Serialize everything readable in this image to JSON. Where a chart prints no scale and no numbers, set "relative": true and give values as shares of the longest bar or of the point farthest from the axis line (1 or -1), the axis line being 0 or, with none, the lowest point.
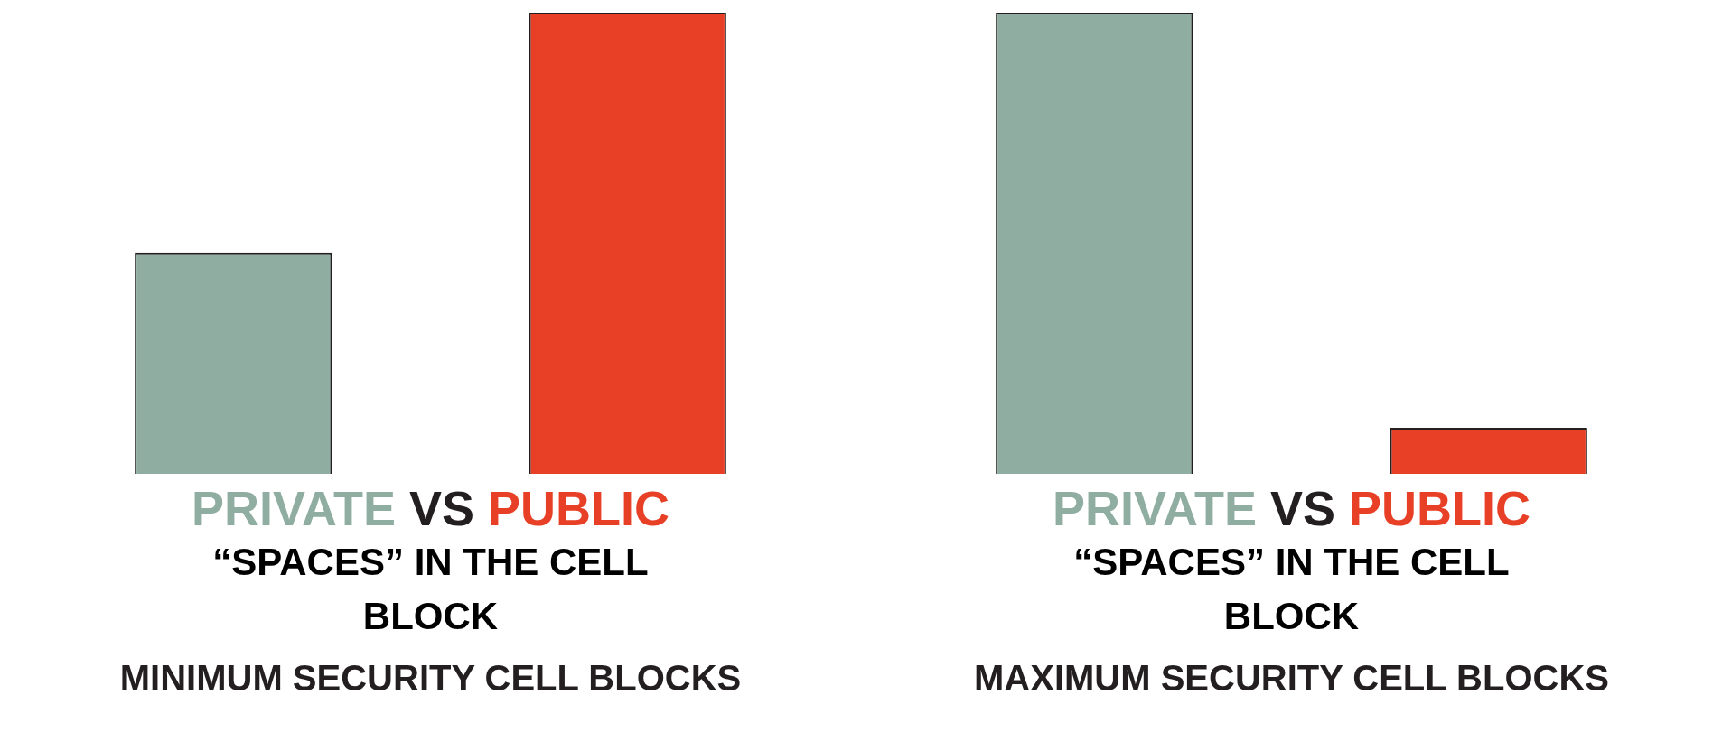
{
  "chart_data": [
    {
      "type": "bar",
      "relative": true,
      "title": "PRIVATE VS PUBLIC",
      "subtitle": "“SPACES” IN THE CELL BLOCK",
      "xlabel": "MINIMUM SECURITY CELL BLOCKS",
      "categories": [
        null,
        null
      ],
      "values": [
        0.48,
        1
      ],
      "colors": [
        "#8fada1",
        "#e84026"
      ]
    },
    {
      "type": "bar",
      "relative": true,
      "title": "PRIVATE VS PUBLIC",
      "subtitle": "“SPACES” IN THE CELL BLOCK",
      "xlabel": "MAXIMUM SECURITY CELL BLOCKS",
      "categories": [
        null,
        null
      ],
      "values": [
        1,
        0.1
      ],
      "colors": [
        "#8fada1",
        "#e84026"
      ]
    }
  ]
}
